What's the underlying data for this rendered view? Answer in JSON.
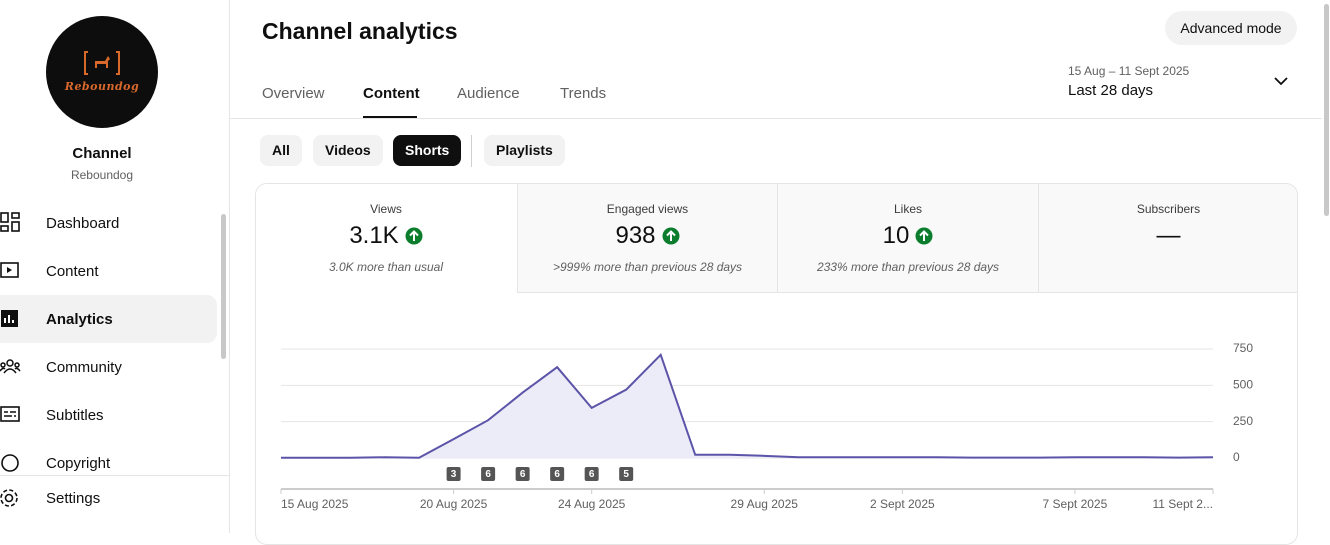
{
  "sidebar": {
    "logo_text": "Reboundog",
    "channel_label": "Channel",
    "channel_name": "Reboundog",
    "nav": [
      "Dashboard",
      "Content",
      "Analytics",
      "Community",
      "Subtitles",
      "Copyright"
    ],
    "settings": "Settings"
  },
  "header": {
    "title": "Channel analytics",
    "advanced_mode": "Advanced mode",
    "tabs": [
      "Overview",
      "Content",
      "Audience",
      "Trends"
    ],
    "active_tab": 1,
    "date_range": "15 Aug – 11 Sept 2025",
    "period": "Last 28 days"
  },
  "filters": {
    "chips": [
      "All",
      "Videos",
      "Shorts",
      "Playlists"
    ],
    "active": 2
  },
  "metrics": [
    {
      "label": "Views",
      "value": "3.1K",
      "note": "3.0K more than usual"
    },
    {
      "label": "Engaged views",
      "value": "938",
      "note": ">999% more than previous 28 days"
    },
    {
      "label": "Likes",
      "value": "10",
      "note": "233% more than previous 28 days"
    },
    {
      "label": "Subscribers",
      "value": "—"
    }
  ],
  "chart_data": {
    "type": "line",
    "color": "#5b54a8",
    "fill": "#ecebf8",
    "categories": [
      "15 Aug 2025",
      null,
      null,
      null,
      null,
      "20 Aug 2025",
      null,
      null,
      null,
      "24 Aug 2025",
      null,
      null,
      null,
      null,
      "29 Aug 2025",
      null,
      null,
      null,
      "2 Sept 2025",
      null,
      null,
      null,
      null,
      "7 Sept 2025",
      null,
      null,
      null,
      "11 Sept 2..."
    ],
    "values": [
      2,
      2,
      2,
      5,
      2,
      130,
      260,
      450,
      625,
      345,
      470,
      710,
      22,
      22,
      15,
      5,
      5,
      5,
      5,
      5,
      3,
      3,
      3,
      5,
      5,
      5,
      3,
      5
    ],
    "published_counts": [
      null,
      null,
      null,
      null,
      null,
      3,
      6,
      6,
      6,
      6,
      5,
      null,
      null,
      null,
      null,
      null,
      null,
      null,
      null,
      null,
      null,
      null,
      null,
      null,
      null,
      null,
      null,
      null
    ],
    "ylim": [
      0,
      750
    ],
    "yticks": [
      0,
      250,
      500,
      750
    ],
    "grid": true
  }
}
